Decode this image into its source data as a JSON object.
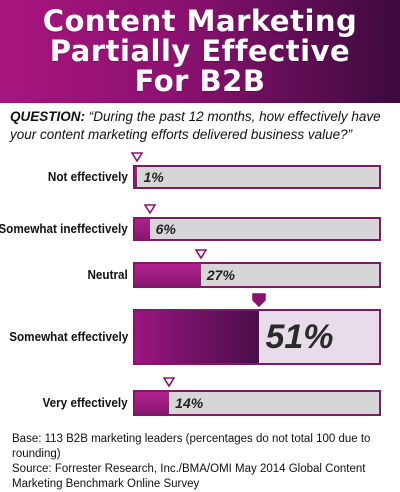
{
  "header": {
    "title_lines": [
      "Content Marketing",
      "Partially Effective",
      "For B2B"
    ]
  },
  "question": {
    "prefix": "QUESTION:",
    "text": "“During the past 12 months, how effectively have your content marketing efforts delivered business value?”"
  },
  "chart_data": {
    "type": "bar",
    "orientation": "horizontal",
    "categories": [
      "Not effectively",
      "Somewhat ineffectively",
      "Neutral",
      "Somewhat effectively",
      "Very effectively"
    ],
    "values": [
      1,
      6,
      27,
      51,
      14
    ],
    "value_labels": [
      "1%",
      "6%",
      "27%",
      "51%",
      "14%"
    ],
    "unit": "%",
    "xlim": [
      0,
      100
    ],
    "highlight": "Somewhat effectively",
    "colors": {
      "bar": "#9c1581",
      "track": "#d6d6d6",
      "border": "#7d1a64",
      "header_start": "#a8157e",
      "header_end": "#3c0a3e"
    }
  },
  "footer": {
    "base": "Base: 113 B2B marketing leaders (percentages do not total 100 due to rounding)",
    "source": "Source: Forrester Research, Inc./BMA/OMI May 2014 Global Content Marketing Benchmark Online Survey"
  }
}
